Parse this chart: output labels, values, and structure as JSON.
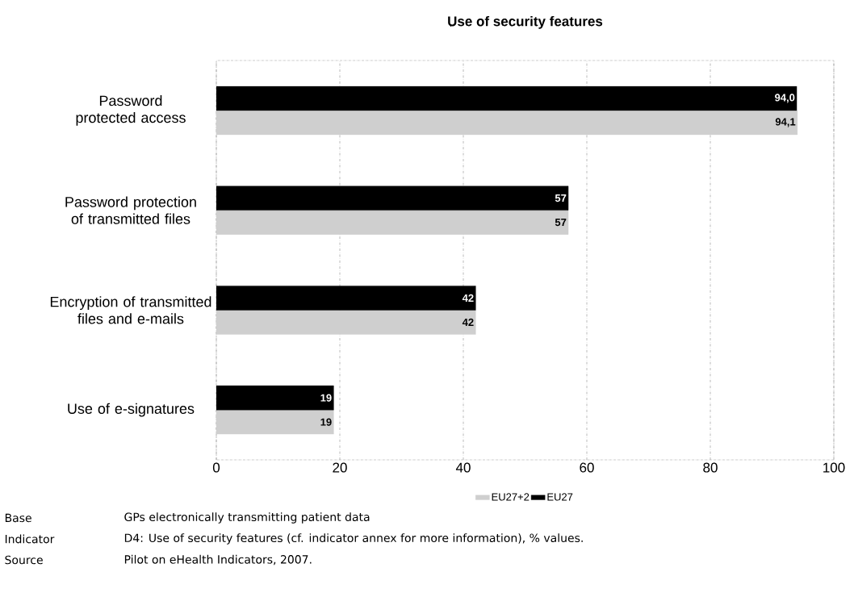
{
  "chart_data": {
    "type": "bar",
    "orientation": "horizontal",
    "title": "Use of security features",
    "categories": [
      "Password protected access",
      "Password protection of transmitted files",
      "Encryption of transmitted files and e-mails",
      "Use of e-signatures"
    ],
    "series": [
      {
        "name": "EU27+2",
        "color": "#cfcfcf",
        "values": [
          94.1,
          57,
          42,
          19
        ],
        "value_labels": [
          "94,1",
          "57",
          "42",
          "19"
        ]
      },
      {
        "name": "EU27",
        "color": "#000000",
        "values": [
          94.0,
          57,
          42,
          19
        ],
        "value_labels": [
          "94,0",
          "57",
          "42",
          "19"
        ]
      }
    ],
    "xlim": [
      0,
      100
    ],
    "xticks": [
      0,
      20,
      40,
      60,
      80,
      100
    ],
    "grid": "x",
    "legend": "bottom",
    "annotations": [
      "Base",
      "GPs electronically transmitting patient data",
      "Indicator",
      "D4: Use of security features (cf. indicator annex for more information), % values.",
      "Source",
      "Pilot on eHealth Indicators, 2007."
    ]
  }
}
